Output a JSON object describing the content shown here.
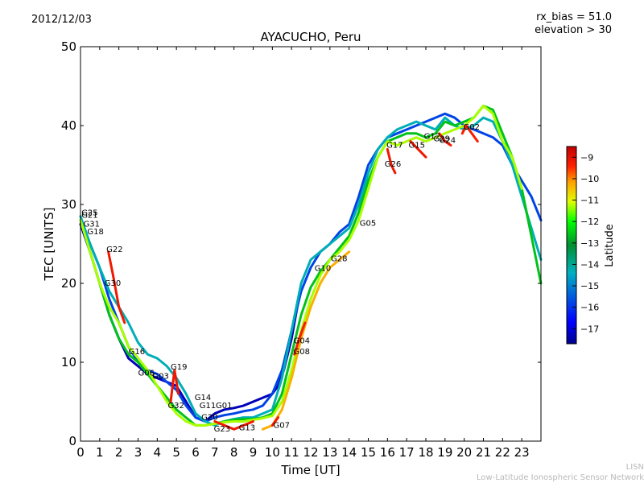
{
  "header": {
    "date": "2012/12/03",
    "params": [
      "rx_bias = 51.0",
      "elevation > 30"
    ]
  },
  "footer": {
    "line1": "LISN",
    "line2": "Low-Latitude Ionospheric Sensor Network"
  },
  "chart_data": {
    "type": "line",
    "title": "AYACUCHO, Peru",
    "xlabel": "Time [UT]",
    "ylabel": "TEC [UNITS]",
    "xlim": [
      0,
      24
    ],
    "ylim": [
      0,
      50
    ],
    "xticks": [
      "0",
      "1",
      "2",
      "3",
      "4",
      "5",
      "6",
      "7",
      "8",
      "9",
      "10",
      "11",
      "12",
      "13",
      "14",
      "15",
      "16",
      "17",
      "18",
      "19",
      "20",
      "21",
      "22",
      "23"
    ],
    "yticks": [
      "0",
      "10",
      "20",
      "30",
      "40",
      "50"
    ],
    "grid": false,
    "colorbar": {
      "label": "Latitude",
      "range": [
        -17.7,
        -8.5
      ],
      "ticks": [
        "-9",
        "-10",
        "-11",
        "-12",
        "-13",
        "-14",
        "-15",
        "-16",
        "-17"
      ],
      "colormap": "jet"
    },
    "series": [
      {
        "name": "blue-long",
        "lat": -17.3,
        "x": [
          0,
          0.5,
          1,
          1.5,
          2,
          2.5,
          3,
          3.5,
          4,
          4.5,
          5,
          5.5,
          6,
          6.5,
          7,
          7.5,
          8,
          8.5,
          9,
          9.5,
          10,
          10.3,
          10.6,
          11,
          11.3
        ],
        "y": [
          27.5,
          24,
          20,
          16,
          13,
          10.5,
          9.5,
          8.5,
          8,
          7.5,
          7,
          5,
          3,
          2.5,
          3.5,
          4,
          4.2,
          4.5,
          5,
          5.5,
          6,
          7,
          9,
          13,
          17
        ]
      },
      {
        "name": "cyan-arc",
        "lat": -15.8,
        "x": [
          0,
          0.5,
          1,
          1.5,
          2,
          2.5,
          3,
          3.5,
          4,
          4.5,
          5,
          5.5,
          6,
          6.5,
          7,
          7.5,
          8,
          8.5,
          9,
          9.5,
          10,
          10.5,
          11,
          11.5,
          12,
          12.5,
          13,
          13.5,
          14,
          14.5,
          15,
          15.5,
          16,
          16.5,
          17,
          17.5,
          18,
          18.5,
          19,
          19.5,
          20,
          20.5,
          21,
          21.5,
          22,
          22.5,
          23,
          23.5,
          24
        ],
        "y": [
          28,
          25,
          22,
          18,
          15,
          12,
          10,
          9,
          8.5,
          7.5,
          6.5,
          4.5,
          3,
          2.5,
          3,
          3.3,
          3.5,
          3.8,
          4,
          4.5,
          6,
          9,
          14,
          19,
          22,
          24,
          25,
          26.5,
          27.5,
          31,
          35,
          37,
          38.5,
          39,
          39.5,
          40,
          40.5,
          41,
          41.5,
          41,
          40,
          39.5,
          39,
          38.5,
          37.5,
          35,
          33,
          31,
          28
        ]
      },
      {
        "name": "green-arc",
        "lat": -14.3,
        "x": [
          0,
          0.5,
          1,
          1.5,
          2,
          2.5,
          3,
          3.5,
          4,
          4.5,
          5,
          5.5,
          6,
          6.5,
          7,
          7.5,
          8,
          8.5,
          9,
          9.5,
          10,
          10.5,
          11,
          11.5,
          12,
          12.5,
          13,
          13.5,
          14,
          14.5,
          15,
          15.5,
          16,
          16.5,
          17,
          17.5,
          18,
          18.5,
          19,
          19.5,
          20,
          20.5,
          21,
          21.5,
          22,
          22.5,
          23,
          23.5,
          24
        ],
        "y": [
          28.5,
          25,
          22,
          19,
          17,
          15,
          12.5,
          11,
          10.5,
          9.5,
          8,
          6,
          3.5,
          2.5,
          2,
          2.5,
          2.8,
          3,
          3,
          3.5,
          4,
          8,
          14,
          20,
          23,
          24,
          25,
          26,
          27,
          30,
          34,
          37,
          38.5,
          39.5,
          40,
          40.5,
          40,
          39.5,
          41,
          40,
          39.5,
          40,
          41,
          40.5,
          38,
          35,
          31,
          27,
          23
        ]
      },
      {
        "name": "lime-arc",
        "lat": -12.6,
        "x": [
          0,
          0.5,
          1,
          1.5,
          2,
          2.5,
          3,
          3.5,
          4,
          4.5,
          5,
          5.5,
          6,
          6.5,
          7,
          7.5,
          8,
          8.5,
          9,
          9.5,
          10,
          10.5,
          11,
          11.5,
          12,
          12.5,
          13,
          13.5,
          14,
          14.5,
          15,
          15.5,
          16,
          16.5,
          17,
          17.5,
          18,
          18.5,
          19,
          19.5,
          20,
          20.5,
          21,
          21.5,
          22,
          22.5,
          23,
          23.5,
          24
        ],
        "y": [
          28,
          24,
          20,
          16,
          13,
          11,
          10,
          8.5,
          7,
          5.5,
          4,
          3,
          2,
          2,
          2.2,
          2.5,
          2.7,
          2.8,
          2.8,
          3,
          3.5,
          6,
          11,
          16,
          19.5,
          21.5,
          23,
          24.5,
          26,
          29,
          33,
          36,
          38,
          38.5,
          39,
          39,
          38.5,
          39,
          40.5,
          40,
          40.5,
          41,
          42.5,
          42,
          39,
          36,
          32,
          26,
          20
        ]
      },
      {
        "name": "yellow-arc",
        "lat": -11.3,
        "x": [
          0,
          0.5,
          1,
          1.5,
          2,
          2.5,
          3,
          3.5,
          4,
          4.5,
          5,
          5.5,
          6,
          6.5,
          7,
          7.5,
          8,
          8.5,
          9,
          9.5,
          10,
          10.5,
          11,
          11.5,
          12,
          12.5,
          13,
          13.5,
          14,
          14.5,
          15,
          15.5,
          16,
          16.5,
          17,
          17.5,
          18,
          18.5,
          19,
          19.5,
          20,
          20.5,
          21,
          21.5,
          22,
          22.5,
          23
        ],
        "y": [
          28,
          24,
          20,
          17,
          15,
          12,
          10.5,
          9,
          7,
          5,
          3.5,
          2.5,
          2,
          2,
          2.2,
          2.4,
          2.5,
          2.5,
          2.7,
          2.9,
          3.2,
          5,
          9,
          14,
          18,
          21,
          23,
          24,
          25.5,
          28,
          32,
          36,
          38,
          37.5,
          38,
          38.5,
          38,
          38.5,
          39,
          39.5,
          40,
          41,
          42.5,
          41.5,
          38,
          36,
          32
        ]
      },
      {
        "name": "orange-arc",
        "lat": -10.3,
        "x": [
          9.5,
          10,
          10.5,
          11,
          11.5,
          12,
          12.5,
          13,
          13.5,
          14
        ],
        "y": [
          1.5,
          2,
          4,
          8,
          13,
          17,
          20,
          22,
          23,
          24
        ]
      },
      {
        "name": "G22",
        "lat": -9.2,
        "x": [
          1.45,
          1.7,
          2,
          2.3
        ],
        "y": [
          24,
          21,
          17,
          15
        ]
      },
      {
        "name": "G04",
        "lat": -9.3,
        "x": [
          11.15,
          11.4,
          11.7
        ],
        "y": [
          11,
          13,
          15
        ]
      },
      {
        "name": "G26",
        "lat": -9.2,
        "x": [
          16,
          16.2,
          16.4
        ],
        "y": [
          37,
          35,
          34
        ]
      },
      {
        "name": "G15",
        "lat": -9.2,
        "x": [
          17.2,
          17.6,
          18
        ],
        "y": [
          38,
          37,
          36
        ]
      },
      {
        "name": "G24",
        "lat": -9.3,
        "x": [
          18.7,
          19,
          19.3
        ],
        "y": [
          39,
          38,
          37.5
        ]
      },
      {
        "name": "G02",
        "lat": -9.3,
        "x": [
          19.9,
          20.1,
          20.7
        ],
        "y": [
          39,
          40,
          38
        ]
      },
      {
        "name": "G19",
        "lat": -9.2,
        "x": [
          4.7,
          4.9,
          5.1
        ],
        "y": [
          5,
          9,
          6
        ]
      },
      {
        "name": "red-low",
        "lat": -9.2,
        "x": [
          7,
          7.5,
          8,
          8.5,
          9
        ],
        "y": [
          2.5,
          2,
          1.5,
          2,
          2.5
        ]
      },
      {
        "name": "G07",
        "lat": -9.2,
        "x": [
          10,
          10.3
        ],
        "y": [
          2,
          3
        ]
      }
    ],
    "annotations": [
      {
        "text": "G25",
        "x": 0.05,
        "y": 28.6
      },
      {
        "text": "G21",
        "x": 0.05,
        "y": 28.3
      },
      {
        "text": "G31",
        "x": 0.15,
        "y": 27.2
      },
      {
        "text": "G18",
        "x": 0.35,
        "y": 26.2
      },
      {
        "text": "G22",
        "x": 1.35,
        "y": 24
      },
      {
        "text": "G30",
        "x": 1.25,
        "y": 19.7
      },
      {
        "text": "G16",
        "x": 2.5,
        "y": 11
      },
      {
        "text": "G06",
        "x": 3,
        "y": 8.3
      },
      {
        "text": "G03",
        "x": 3.75,
        "y": 7.9
      },
      {
        "text": "G19",
        "x": 4.7,
        "y": 9.1
      },
      {
        "text": "G32",
        "x": 4.55,
        "y": 4.2
      },
      {
        "text": "G14",
        "x": 5.95,
        "y": 5.2
      },
      {
        "text": "G11",
        "x": 6.2,
        "y": 4.2
      },
      {
        "text": "G01",
        "x": 7.05,
        "y": 4.2
      },
      {
        "text": "G20",
        "x": 6.3,
        "y": 2.7
      },
      {
        "text": "G23",
        "x": 6.95,
        "y": 1.2
      },
      {
        "text": "G13",
        "x": 8.25,
        "y": 1.4
      },
      {
        "text": "G07",
        "x": 10.05,
        "y": 1.7
      },
      {
        "text": "G04",
        "x": 11.1,
        "y": 12.4
      },
      {
        "text": "G08",
        "x": 11.1,
        "y": 11
      },
      {
        "text": "G10",
        "x": 12.2,
        "y": 21.6
      },
      {
        "text": "G28",
        "x": 13.05,
        "y": 22.8
      },
      {
        "text": "G05",
        "x": 14.55,
        "y": 27.3
      },
      {
        "text": "G26",
        "x": 15.85,
        "y": 34.8
      },
      {
        "text": "G17",
        "x": 15.95,
        "y": 37.2
      },
      {
        "text": "G15",
        "x": 17.1,
        "y": 37.2
      },
      {
        "text": "G12",
        "x": 17.9,
        "y": 38.3
      },
      {
        "text": "G29",
        "x": 18.4,
        "y": 38
      },
      {
        "text": "G24",
        "x": 18.7,
        "y": 37.8
      },
      {
        "text": "G02",
        "x": 19.95,
        "y": 39.5
      }
    ]
  }
}
